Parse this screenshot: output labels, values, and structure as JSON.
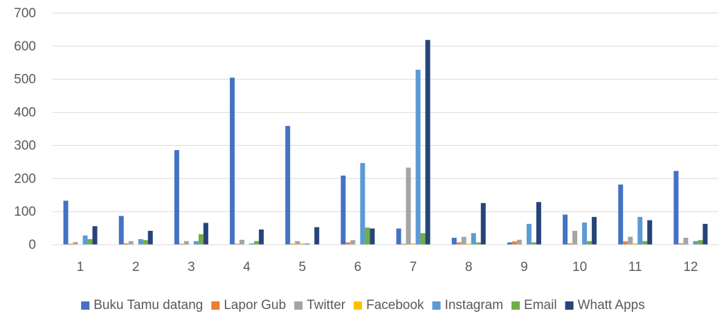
{
  "chart_data": {
    "type": "bar",
    "title": "",
    "xlabel": "",
    "ylabel": "",
    "categories": [
      "1",
      "2",
      "3",
      "4",
      "5",
      "6",
      "7",
      "8",
      "9",
      "10",
      "11",
      "12"
    ],
    "ylim": [
      0,
      700
    ],
    "yticks": [
      "0",
      "100",
      "200",
      "300",
      "400",
      "500",
      "600",
      "700"
    ],
    "grid": "horizontal",
    "legend_position": "bottom",
    "series": [
      {
        "name": "Buku Tamu datang",
        "color": "#4472C4",
        "values": [
          133,
          87,
          286,
          505,
          359,
          209,
          49,
          21,
          7,
          91,
          182,
          223
        ]
      },
      {
        "name": "Lapor Gub",
        "color": "#ED7D31",
        "values": [
          3,
          4,
          3,
          3,
          3,
          7,
          3,
          7,
          10,
          4,
          10,
          4
        ]
      },
      {
        "name": "Twitter",
        "color": "#A5A5A5",
        "values": [
          8,
          11,
          11,
          15,
          11,
          14,
          233,
          24,
          15,
          42,
          24,
          21
        ]
      },
      {
        "name": "Facebook",
        "color": "#FFC000",
        "values": [
          1,
          1,
          1,
          1,
          4,
          1,
          4,
          3,
          1,
          1,
          4,
          1
        ]
      },
      {
        "name": "Instagram",
        "color": "#5B9BD5",
        "values": [
          28,
          17,
          11,
          4,
          4,
          247,
          529,
          35,
          63,
          67,
          84,
          11
        ]
      },
      {
        "name": "Email",
        "color": "#70AD47",
        "values": [
          17,
          14,
          32,
          11,
          1,
          52,
          35,
          7,
          7,
          11,
          11,
          14
        ]
      },
      {
        "name": "Whatt Apps",
        "color": "#264478",
        "values": [
          56,
          42,
          66,
          46,
          53,
          49,
          619,
          126,
          129,
          84,
          74,
          63
        ]
      }
    ]
  }
}
